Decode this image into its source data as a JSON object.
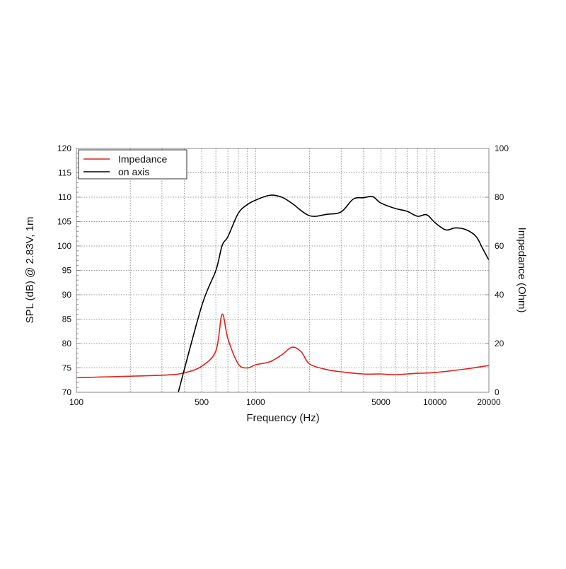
{
  "chart_data": {
    "type": "line",
    "title": "",
    "xlabel": "Frequency (Hz)",
    "ylabel": "SPL (dB) @ 2.83V, 1m",
    "y2label": "Impedance (Ohm)",
    "x_scale": "log",
    "xlim": [
      100,
      20000
    ],
    "ylim": [
      70,
      120
    ],
    "y2lim": [
      0,
      100
    ],
    "x_ticks": [
      100,
      500,
      1000,
      5000,
      10000,
      20000
    ],
    "y_ticks": [
      70,
      75,
      80,
      85,
      90,
      95,
      100,
      105,
      110,
      115,
      120
    ],
    "y2_ticks": [
      0,
      20,
      40,
      60,
      80,
      100
    ],
    "grid": true,
    "legend": "top-left",
    "series": [
      {
        "name": "Impedance",
        "axis": "right",
        "color": "#e0231c",
        "x": [
          100,
          300,
          400,
          500,
          600,
          650,
          700,
          800,
          900,
          1000,
          1200,
          1400,
          1600,
          1800,
          2000,
          2500,
          3000,
          4000,
          5000,
          6000,
          8000,
          10000,
          15000,
          20000
        ],
        "y": [
          6,
          7,
          8,
          10.7,
          17,
          32,
          22,
          11.6,
          10,
          11.3,
          12.5,
          15.4,
          18.5,
          16.5,
          11.6,
          9.3,
          8.4,
          7.5,
          7.5,
          7.2,
          7.8,
          8.1,
          9.6,
          11
        ]
      },
      {
        "name": "on axis",
        "axis": "left",
        "color": "#000000",
        "x": [
          370,
          500,
          600,
          650,
          700,
          800,
          900,
          1000,
          1200,
          1400,
          1600,
          2000,
          2500,
          3000,
          3500,
          4000,
          4500,
          5000,
          6000,
          7000,
          8000,
          9000,
          10000,
          11500,
          13000,
          15000,
          17000,
          18500,
          20000
        ],
        "y": [
          70,
          87.7,
          95,
          100.1,
          101.9,
          106.7,
          108.5,
          109.4,
          110.4,
          110,
          108.7,
          106.2,
          106.5,
          107,
          109.6,
          109.9,
          110.1,
          108.8,
          107.7,
          107.1,
          106.1,
          106.4,
          104.8,
          103.3,
          103.7,
          103.3,
          101.9,
          99.4,
          97.1
        ]
      }
    ]
  }
}
